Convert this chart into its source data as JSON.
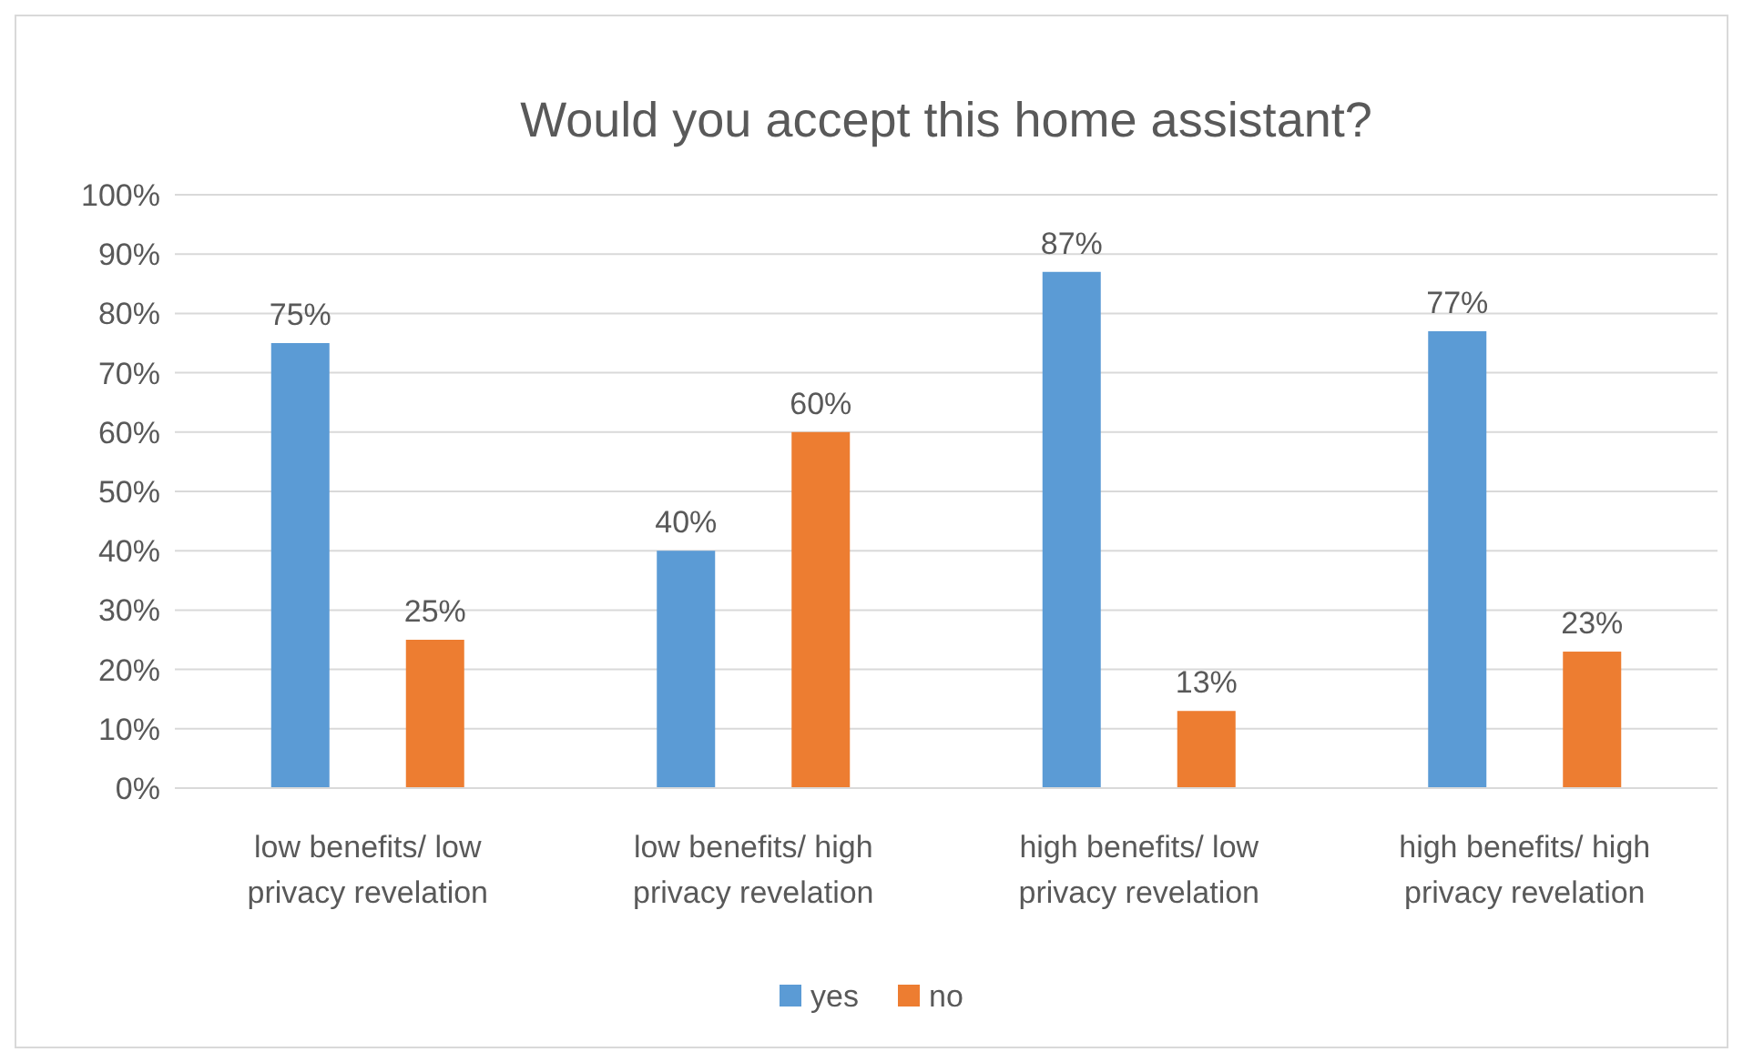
{
  "chart_data": {
    "type": "bar",
    "title": "Would you accept this home assistant?",
    "categories": [
      "low benefits/ low privacy revelation",
      "low benefits/ high privacy revelation",
      "high benefits/ low privacy revelation",
      "high benefits/ high privacy revelation"
    ],
    "series": [
      {
        "name": "yes",
        "color": "#5b9bd5",
        "values": [
          75,
          40,
          87,
          77
        ],
        "value_labels": [
          "75%",
          "40%",
          "87%",
          "77%"
        ]
      },
      {
        "name": "no",
        "color": "#ed7d31",
        "values": [
          25,
          60,
          13,
          23
        ],
        "value_labels": [
          "25%",
          "60%",
          "13%",
          "23%"
        ]
      }
    ],
    "ylim": [
      0,
      100
    ],
    "yticks": [
      {
        "value": 0,
        "label": "0%"
      },
      {
        "value": 10,
        "label": "10%"
      },
      {
        "value": 20,
        "label": "20%"
      },
      {
        "value": 30,
        "label": "30%"
      },
      {
        "value": 40,
        "label": "40%"
      },
      {
        "value": 50,
        "label": "50%"
      },
      {
        "value": 60,
        "label": "60%"
      },
      {
        "value": 70,
        "label": "70%"
      },
      {
        "value": 80,
        "label": "80%"
      },
      {
        "value": 90,
        "label": "90%"
      },
      {
        "value": 100,
        "label": "100%"
      }
    ],
    "grid": "y",
    "legend": "bottom"
  }
}
